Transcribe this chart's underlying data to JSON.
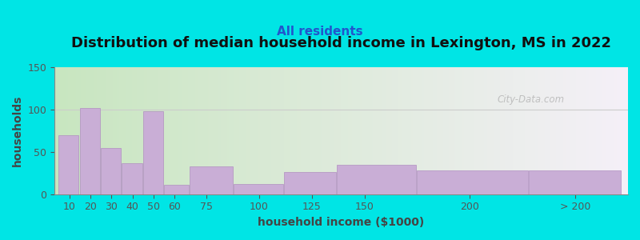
{
  "title": "Distribution of median household income in Lexington, MS in 2022",
  "subtitle": "All residents",
  "xlabel": "household income ($1000)",
  "ylabel": "households",
  "background_outer": "#00e5e5",
  "background_inner_left": "#c8e6c0",
  "background_inner_right": "#f5f0f8",
  "bar_color": "#c9aed6",
  "bar_edge_color": "#b090c0",
  "watermark": "City-Data.com",
  "ylim": [
    0,
    150
  ],
  "yticks": [
    0,
    50,
    100,
    150
  ],
  "categories": [
    "10",
    "20",
    "30",
    "40",
    "50",
    "60",
    "75",
    "100",
    "125",
    "150",
    "200",
    "> 200"
  ],
  "values": [
    70,
    102,
    55,
    37,
    98,
    11,
    33,
    12,
    26,
    35,
    28,
    28
  ],
  "bar_lefts": [
    5,
    15,
    25,
    35,
    45,
    55,
    67,
    88,
    112,
    137,
    175,
    228
  ],
  "bar_widths": [
    10,
    10,
    10,
    10,
    10,
    12,
    21,
    24,
    25,
    38,
    53,
    44
  ],
  "bar_tick_positions": [
    10,
    20,
    30,
    40,
    50,
    60,
    75,
    100,
    125,
    150,
    200,
    250
  ],
  "xlim": [
    3,
    275
  ],
  "title_fontsize": 13,
  "subtitle_fontsize": 11,
  "axis_label_fontsize": 10,
  "tick_fontsize": 9
}
